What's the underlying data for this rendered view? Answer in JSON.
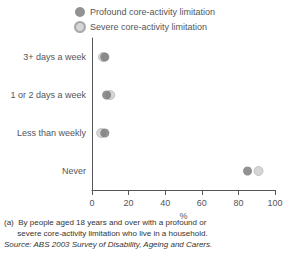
{
  "chart_data": {
    "type": "scatter",
    "orientation": "horizontal",
    "xlabel": "%",
    "categories": [
      "Never",
      "Less than weekly",
      "1 or 2 days a week",
      "3+ days a week"
    ],
    "series": [
      {
        "name": "Profound core-activity limitation",
        "color": "#777777",
        "values": [
          85,
          7,
          8,
          7
        ]
      },
      {
        "name": "Severe core-activity limitation",
        "color": "#cccccc",
        "values": [
          91,
          5,
          10,
          6
        ]
      }
    ],
    "xlim": [
      0,
      100
    ],
    "xticks": [
      0,
      20,
      40,
      60,
      80,
      100
    ],
    "grid": false,
    "legend": "top",
    "annotations": [
      "(a)  By people aged 18 years and over with a profound or",
      "      severe core-activity limitation who live in a household.",
      "Source: ABS 2003 Survey of Disability, Ageing and Carers."
    ]
  }
}
